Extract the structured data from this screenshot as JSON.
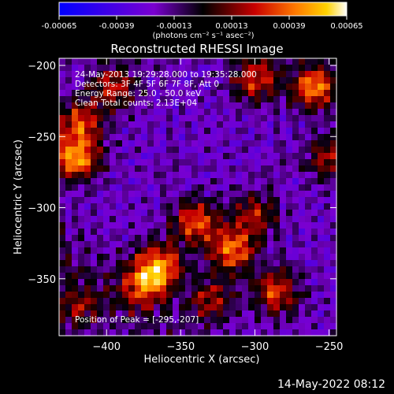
{
  "chart_data": {
    "type": "heatmap",
    "title": "Reconstructed RHESSI Image",
    "xlabel": "Heliocentric X (arcsec)",
    "ylabel": "Heliocentric Y (arcsec)",
    "xlim": [
      -432,
      -245
    ],
    "ylim": [
      -390,
      -195
    ],
    "xticks": [
      -400,
      -350,
      -300,
      -250
    ],
    "yticks": [
      -200,
      -250,
      -300,
      -350
    ],
    "colorbar": {
      "range": [
        -0.00065,
        0.00065
      ],
      "ticks": [
        -0.00065,
        -0.00039,
        -0.00013,
        0.00013,
        0.00039,
        0.00065
      ],
      "tick_labels": [
        "-0.00065",
        "-0.00039",
        "-0.00013",
        "0.00013",
        "0.00039",
        "0.00065"
      ],
      "unit_label": "(photons cm⁻² s⁻¹ asec⁻²)"
    },
    "annotations": [
      "24-May-2013 19:29:28.000 to 19:35:28.000",
      "Detectors: 3F 4F 5F 6F 7F 8F, Att 0",
      "Energy Range: 25.0 - 50.0 keV",
      "Clean     Total counts: 2.13E+04"
    ],
    "peak_label": "Position of Peak = [-295,-207]",
    "hot_spots": [
      {
        "x": -420,
        "y": -265,
        "v": 0.00065
      },
      {
        "x": -418,
        "y": -240,
        "v": 0.0005
      },
      {
        "x": -395,
        "y": -215,
        "v": 0.00045
      },
      {
        "x": -260,
        "y": -215,
        "v": 0.00065
      },
      {
        "x": -300,
        "y": -210,
        "v": 0.0005
      },
      {
        "x": -250,
        "y": -265,
        "v": 0.0004
      },
      {
        "x": -340,
        "y": -310,
        "v": 0.00055
      },
      {
        "x": -315,
        "y": -330,
        "v": 0.0006
      },
      {
        "x": -365,
        "y": -340,
        "v": 0.0006
      },
      {
        "x": -375,
        "y": -355,
        "v": 0.0005
      },
      {
        "x": -285,
        "y": -360,
        "v": 0.0005
      },
      {
        "x": -330,
        "y": -365,
        "v": 0.0004
      },
      {
        "x": -300,
        "y": -305,
        "v": 0.0004
      },
      {
        "x": -420,
        "y": -370,
        "v": 0.00035
      }
    ]
  },
  "footer": {
    "date_stamp": "14-May-2022 08:12"
  }
}
